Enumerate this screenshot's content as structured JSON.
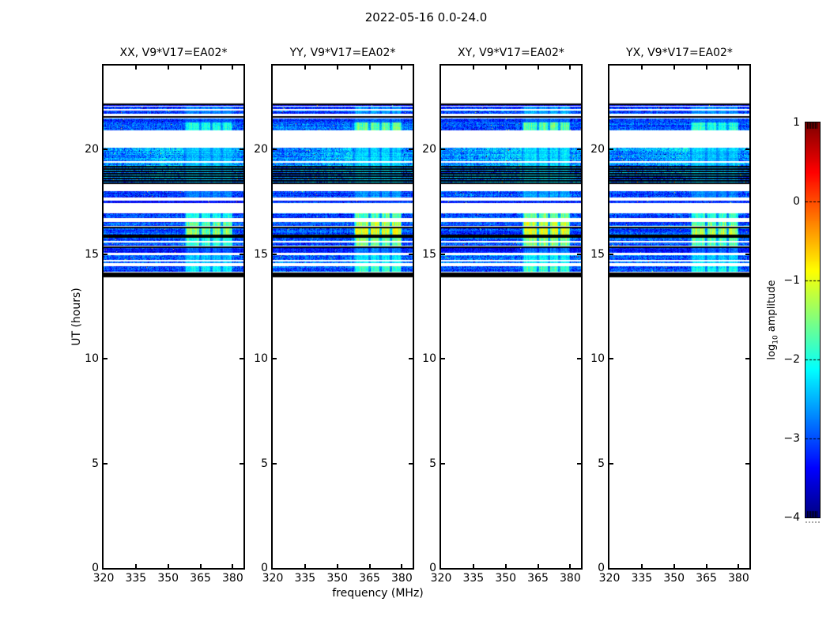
{
  "title": "2022-05-16 0.0-24.0",
  "chart_data": {
    "type": "heatmap",
    "xlabel": "frequency (MHz)",
    "ylabel": "UT (hours)",
    "x_range": [
      320,
      385
    ],
    "x_ticks": [
      320,
      335,
      350,
      365,
      380
    ],
    "y_range": [
      0,
      24
    ],
    "y_ticks": [
      0,
      5,
      10,
      15,
      20
    ],
    "background": "#ffffff",
    "axis_color": "#000000",
    "colormap": "jet",
    "panels": [
      {
        "label": "XX, V9*V17=EA02*",
        "seed": 101,
        "patch_scale": 0.75
      },
      {
        "label": "YY, V9*V17=EA02*",
        "seed": 202,
        "patch_scale": 1.0
      },
      {
        "label": "XY, V9*V17=EA02*",
        "seed": 303,
        "patch_scale": 1.05
      },
      {
        "label": "YX, V9*V17=EA02*",
        "seed": 404,
        "patch_scale": 0.85
      }
    ],
    "colorbar": {
      "label_prefix": "log",
      "label_sub": "10",
      "label_suffix": " amplitude",
      "range": [
        -4,
        1
      ],
      "ticks": [
        1,
        0,
        -1,
        -2,
        -3,
        -4
      ],
      "tick_labels": [
        "1",
        "0",
        "−1",
        "−2",
        "−3",
        "−4"
      ]
    },
    "rfi_patch": {
      "freq": [
        357.5,
        379.5
      ],
      "gaps": [
        364.8,
        369.8,
        374.8
      ],
      "boost": 1.55
    },
    "bands": [
      {
        "ut": [
          22.2,
          22.06
        ],
        "base": -3.3,
        "noise": 0.5,
        "patch": 0
      },
      {
        "ut": [
          22.02,
          21.7
        ],
        "base": -3.05,
        "noise": 0.8,
        "patch": 0.3
      },
      {
        "ut": [
          21.48,
          21.3
        ],
        "base": -3.05,
        "noise": 0.7,
        "patch": 0.15
      },
      {
        "ut": [
          21.28,
          20.92
        ],
        "base": -2.9,
        "noise": 0.8,
        "patch": 0.75
      },
      {
        "ut": [
          20.06,
          18.4
        ],
        "base": -2.8,
        "noise": 0.9,
        "patch": 0.3,
        "glow": 0.45
      },
      {
        "ut": [
          18.0,
          17.7
        ],
        "base": -3.0,
        "noise": 0.8,
        "patch": 0.25
      },
      {
        "ut": [
          17.56,
          17.44
        ],
        "base": -3.2,
        "noise": 0.5,
        "patch": 0
      },
      {
        "ut": [
          16.94,
          16.66
        ],
        "base": -3.0,
        "noise": 0.8,
        "patch": 0.85
      },
      {
        "ut": [
          16.53,
          16.34
        ],
        "base": -3.0,
        "noise": 0.7,
        "patch": 1.1
      },
      {
        "ut": [
          16.23,
          15.93
        ],
        "base": -3.0,
        "noise": 0.7,
        "patch": 1.3
      },
      {
        "ut": [
          15.77,
          15.4
        ],
        "base": -2.95,
        "noise": 0.8,
        "patch": 0.9
      },
      {
        "ut": [
          15.33,
          15.05
        ],
        "base": -3.25,
        "noise": 0.6,
        "patch": 0.3
      },
      {
        "ut": [
          14.94,
          14.55
        ],
        "base": -2.85,
        "noise": 0.9,
        "patch": 0.4
      },
      {
        "ut": [
          14.4,
          14.15
        ],
        "base": -3.0,
        "noise": 0.8,
        "patch": 0.7
      }
    ],
    "black_bands": [
      [
        15.93,
        15.78
      ]
    ],
    "black_lines": [
      22.2,
      21.6,
      19.21,
      19.09,
      18.98,
      18.87,
      18.75,
      18.64,
      18.53,
      18.42,
      16.3,
      15.37,
      14.12,
      14.05,
      13.95
    ],
    "white_lines": [
      21.92,
      19.45,
      16.7,
      15.62,
      14.72
    ]
  }
}
